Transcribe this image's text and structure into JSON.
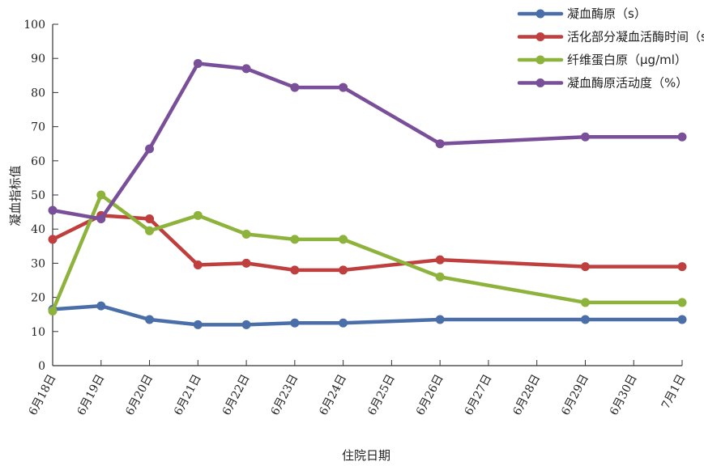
{
  "chart_data": {
    "type": "line",
    "title": "",
    "xlabel": "住院日期",
    "ylabel": "凝血指标值",
    "ylim": [
      0,
      100
    ],
    "yticks": [
      0,
      10,
      20,
      30,
      40,
      50,
      60,
      70,
      80,
      90,
      100
    ],
    "categories": [
      "6月18日",
      "6月19日",
      "6月20日",
      "6月21日",
      "6月22日",
      "6月23日",
      "6月24日",
      "6月25日",
      "6月26日",
      "6月27日",
      "6月28日",
      "6月29日",
      "6月30日",
      "7月1日"
    ],
    "grid": false,
    "legend_position": "top-right",
    "series": [
      {
        "name": "凝血酶原（s）",
        "color": "#4a6fa8",
        "values": [
          16.5,
          17.5,
          13.5,
          12,
          12,
          12.5,
          12.5,
          null,
          13.5,
          null,
          null,
          13.5,
          null,
          13.5
        ]
      },
      {
        "name": "活化部分凝血活酶时间（s）",
        "color": "#bf3f3f",
        "values": [
          37,
          44,
          43,
          29.5,
          30,
          28,
          28,
          null,
          31,
          null,
          null,
          29,
          null,
          29
        ]
      },
      {
        "name": "纤维蛋白原（μg/ml）",
        "color": "#8db33c",
        "values": [
          16,
          50,
          39.5,
          44,
          38.5,
          37,
          37,
          null,
          26,
          null,
          null,
          18.5,
          null,
          18.5
        ]
      },
      {
        "name": "凝血酶原活动度（%）",
        "color": "#7a4f99",
        "values": [
          45.5,
          43,
          63.5,
          88.5,
          87,
          81.5,
          81.5,
          null,
          65,
          null,
          null,
          67,
          null,
          67
        ]
      }
    ]
  }
}
